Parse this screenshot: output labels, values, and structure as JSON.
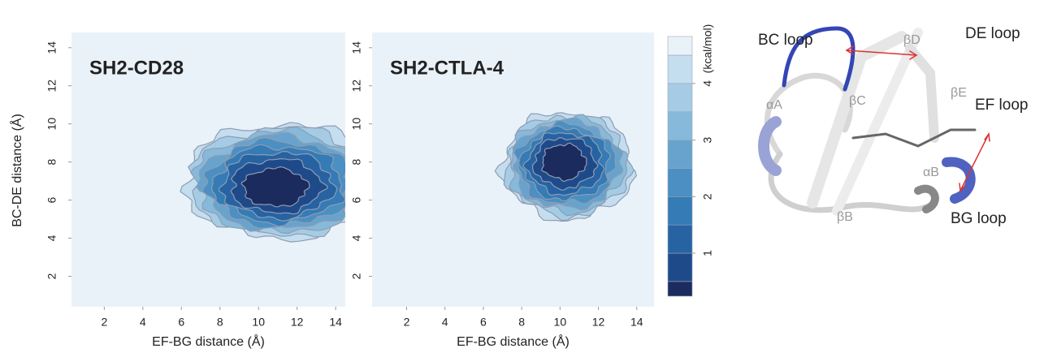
{
  "chart_data": [
    {
      "type": "contour",
      "title": "SH2-CD28",
      "xlabel": "EF-BG distance (Å)",
      "ylabel": "BC-DE distance (Å)",
      "xlim": [
        0.3,
        14.5
      ],
      "ylim": [
        0.4,
        14.8
      ],
      "xticks": [
        2,
        4,
        6,
        8,
        10,
        12,
        14
      ],
      "yticks": [
        2,
        4,
        6,
        8,
        10,
        12,
        14
      ]
    },
    {
      "type": "contour",
      "title": "SH2-CTLA-4",
      "xlabel": "EF-BG distance (Å)",
      "xlim": [
        0.2,
        14.9
      ],
      "ylim": [
        0.4,
        14.8
      ],
      "xticks": [
        2,
        4,
        6,
        8,
        10,
        12,
        14
      ],
      "yticks": [
        2,
        4,
        6,
        8,
        10,
        12,
        14
      ]
    },
    {
      "type": "colorbar",
      "label": "(kcal/mol)",
      "ylim": [
        0.24,
        4.83
      ],
      "yticks": [
        1,
        2,
        3,
        4
      ],
      "levels": [
        0.5,
        1,
        1.5,
        2,
        2.5,
        3,
        3.5,
        4,
        4.5
      ],
      "colors": [
        "#1c2b5e",
        "#1f4a8a",
        "#2763a3",
        "#357bb5",
        "#4c8fc2",
        "#68a3cd",
        "#87b9da",
        "#a6cce5",
        "#c4ddef",
        "#eaf2f9"
      ]
    }
  ],
  "structure": {
    "labels": [
      "BC loop",
      "βD",
      "DE loop",
      "βE",
      "EF loop",
      "αA",
      "βC",
      "αB",
      "βB",
      "BG loop"
    ]
  }
}
